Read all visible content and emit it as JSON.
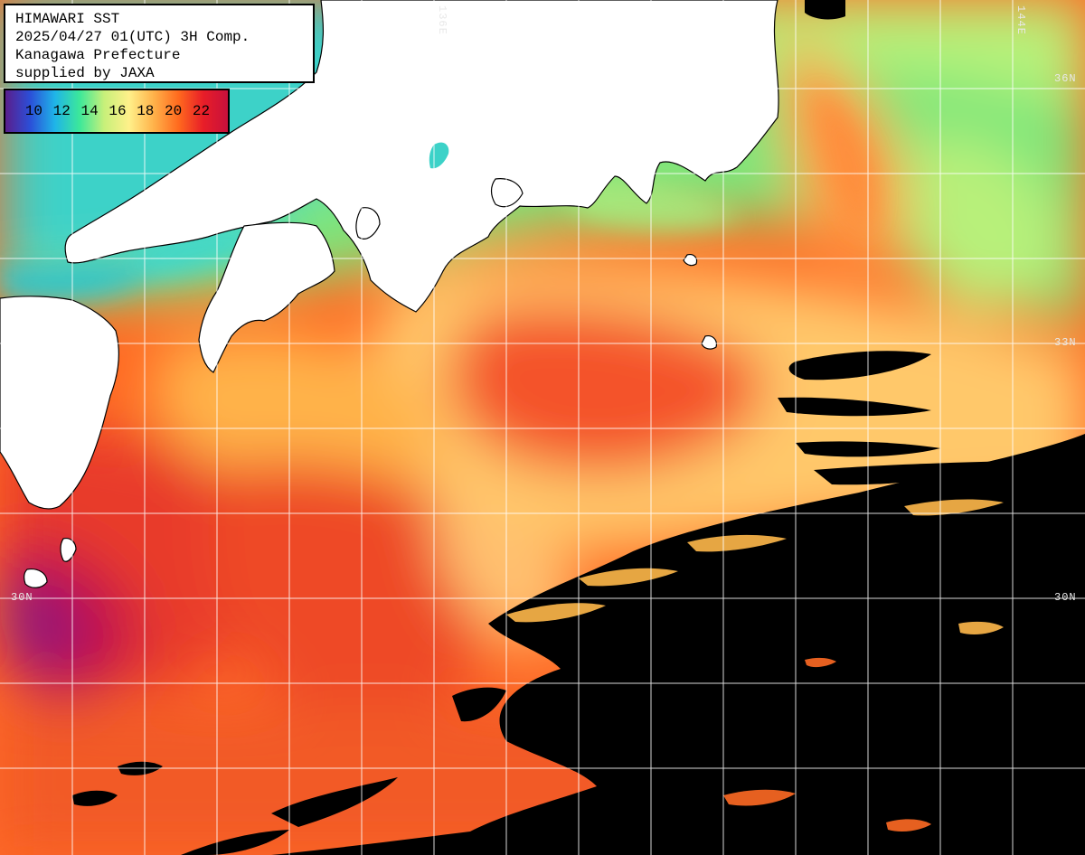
{
  "info": {
    "lines": [
      "HIMAWARI SST",
      "2025/04/27 01(UTC) 3H Comp.",
      "Kanagawa Prefecture",
      "supplied by JAXA"
    ]
  },
  "legend": {
    "ticks": [
      "10",
      "12",
      "14",
      "16",
      "18",
      "20",
      "22"
    ],
    "gradient": [
      "#5a1e8c",
      "#2b4fd8",
      "#1fb4e8",
      "#3ce89a",
      "#c8f07a",
      "#fff08a",
      "#ffb24a",
      "#ff6a1e",
      "#e81e28",
      "#c8103c"
    ]
  },
  "graticule": {
    "lon_labels": [
      "136E",
      "144E"
    ],
    "lat_labels": {
      "n36": "36N",
      "n33": "33N",
      "n30_left": "30N",
      "n30_right": "30N"
    }
  },
  "colors": {
    "land": "#ffffff",
    "cloud": "#000000",
    "grid": "#ffffff"
  }
}
